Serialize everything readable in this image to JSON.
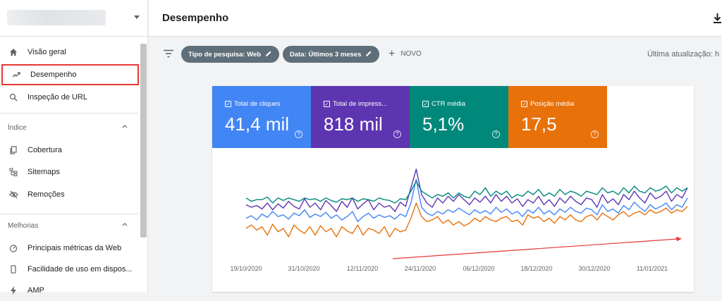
{
  "sidebar": {
    "items": [
      {
        "label": "Visão geral",
        "icon": "home-icon"
      },
      {
        "label": "Desempenho",
        "icon": "trending-up-icon"
      },
      {
        "label": "Inspeção de URL",
        "icon": "search-icon"
      }
    ],
    "sections": [
      {
        "title": "Índice",
        "items": [
          {
            "label": "Cobertura",
            "icon": "copy-icon"
          },
          {
            "label": "Sitemaps",
            "icon": "sitemap-icon"
          },
          {
            "label": "Remoções",
            "icon": "eye-off-icon"
          }
        ]
      },
      {
        "title": "Melhorias",
        "items": [
          {
            "label": "Principais métricas da Web",
            "icon": "gauge-icon"
          },
          {
            "label": "Facilidade de uso em dispos...",
            "icon": "phone-icon"
          },
          {
            "label": "AMP",
            "icon": "bolt-icon"
          }
        ]
      }
    ]
  },
  "header": {
    "title": "Desempenho"
  },
  "toolbar": {
    "chips": [
      "Tipo de pesquisa: Web",
      "Data: Últimos 3 meses"
    ],
    "novo": "NOVO",
    "updated": "Última atualização: h"
  },
  "metrics": [
    {
      "label": "Total de cliques",
      "value": "41,4 mil",
      "color": "#4285f4"
    },
    {
      "label": "Total de impress...",
      "value": "818 mil",
      "color": "#5e35b1"
    },
    {
      "label": "CTR média",
      "value": "5,1%",
      "color": "#00897b"
    },
    {
      "label": "Posição média",
      "value": "17,5",
      "color": "#e8710a"
    }
  ],
  "chart_data": {
    "type": "line",
    "x_labels": [
      "19/10/2020",
      "31/10/2020",
      "12/11/2020",
      "24/11/2020",
      "06/12/2020",
      "18/12/2020",
      "30/12/2020",
      "11/01/2021"
    ],
    "y_axis_shown": false,
    "series": [
      {
        "name": "Total de cliques",
        "color": "#4285f4",
        "values": [
          0.42,
          0.45,
          0.4,
          0.47,
          0.43,
          0.5,
          0.44,
          0.46,
          0.41,
          0.48,
          0.45,
          0.52,
          0.43,
          0.47,
          0.44,
          0.49,
          0.42,
          0.46,
          0.4,
          0.44,
          0.5,
          0.38,
          0.44,
          0.48,
          0.42,
          0.46,
          0.43,
          0.45,
          0.41,
          0.47,
          0.44,
          0.6,
          0.88,
          0.55,
          0.48,
          0.45,
          0.5,
          0.47,
          0.52,
          0.49,
          0.54,
          0.5,
          0.46,
          0.52,
          0.48,
          0.51,
          0.47,
          0.55,
          0.49,
          0.53,
          0.47,
          0.5,
          0.44,
          0.52,
          0.48,
          0.55,
          0.47,
          0.51,
          0.46,
          0.53,
          0.49,
          0.55,
          0.5,
          0.48,
          0.54,
          0.52,
          0.46,
          0.58,
          0.5,
          0.53,
          0.48,
          0.57,
          0.52,
          0.61,
          0.55,
          0.5,
          0.58,
          0.53,
          0.56,
          0.6,
          0.52,
          0.58,
          0.55,
          0.66
        ]
      },
      {
        "name": "Total de impressões",
        "color": "#5e35b1",
        "values": [
          0.58,
          0.55,
          0.57,
          0.53,
          0.6,
          0.52,
          0.59,
          0.54,
          0.62,
          0.56,
          0.53,
          0.65,
          0.55,
          0.6,
          0.52,
          0.63,
          0.57,
          0.5,
          0.62,
          0.55,
          0.66,
          0.53,
          0.59,
          0.64,
          0.52,
          0.6,
          0.55,
          0.57,
          0.5,
          0.61,
          0.56,
          0.78,
          1.0,
          0.7,
          0.6,
          0.55,
          0.66,
          0.6,
          0.68,
          0.62,
          0.7,
          0.64,
          0.58,
          0.66,
          0.61,
          0.68,
          0.6,
          0.7,
          0.62,
          0.68,
          0.6,
          0.65,
          0.56,
          0.64,
          0.6,
          0.68,
          0.58,
          0.64,
          0.56,
          0.66,
          0.6,
          0.68,
          0.62,
          0.58,
          0.66,
          0.64,
          0.55,
          0.7,
          0.6,
          0.65,
          0.58,
          0.7,
          0.64,
          0.74,
          0.66,
          0.6,
          0.72,
          0.65,
          0.68,
          0.74,
          0.62,
          0.7,
          0.66,
          0.78
        ]
      },
      {
        "name": "CTR média",
        "color": "#00897b",
        "values": [
          0.66,
          0.62,
          0.64,
          0.64,
          0.67,
          0.6,
          0.66,
          0.63,
          0.66,
          0.64,
          0.62,
          0.66,
          0.64,
          0.65,
          0.62,
          0.66,
          0.63,
          0.61,
          0.65,
          0.64,
          0.66,
          0.62,
          0.65,
          0.64,
          0.62,
          0.66,
          0.64,
          0.63,
          0.6,
          0.65,
          0.64,
          0.74,
          0.86,
          0.74,
          0.7,
          0.66,
          0.7,
          0.68,
          0.72,
          0.66,
          0.72,
          0.68,
          0.66,
          0.74,
          0.7,
          0.78,
          0.68,
          0.74,
          0.7,
          0.74,
          0.66,
          0.7,
          0.68,
          0.74,
          0.7,
          0.76,
          0.68,
          0.72,
          0.68,
          0.76,
          0.7,
          0.74,
          0.72,
          0.68,
          0.74,
          0.72,
          0.7,
          0.78,
          0.72,
          0.74,
          0.7,
          0.78,
          0.72,
          0.8,
          0.74,
          0.72,
          0.78,
          0.74,
          0.76,
          0.8,
          0.72,
          0.78,
          0.74,
          0.78
        ]
      },
      {
        "name": "Posição média",
        "color": "#e8710a",
        "values": [
          0.3,
          0.34,
          0.28,
          0.32,
          0.22,
          0.35,
          0.26,
          0.3,
          0.2,
          0.34,
          0.28,
          0.24,
          0.32,
          0.22,
          0.33,
          0.26,
          0.3,
          0.2,
          0.32,
          0.27,
          0.24,
          0.34,
          0.22,
          0.3,
          0.28,
          0.24,
          0.32,
          0.2,
          0.3,
          0.26,
          0.28,
          0.42,
          0.6,
          0.44,
          0.38,
          0.4,
          0.44,
          0.36,
          0.4,
          0.34,
          0.38,
          0.33,
          0.36,
          0.42,
          0.38,
          0.44,
          0.4,
          0.38,
          0.42,
          0.44,
          0.38,
          0.4,
          0.34,
          0.46,
          0.42,
          0.44,
          0.38,
          0.42,
          0.36,
          0.44,
          0.4,
          0.46,
          0.4,
          0.38,
          0.44,
          0.46,
          0.4,
          0.48,
          0.44,
          0.4,
          0.46,
          0.5,
          0.44,
          0.48,
          0.5,
          0.46,
          0.52,
          0.48,
          0.5,
          0.54,
          0.48,
          0.52,
          0.5,
          0.56
        ]
      }
    ],
    "annotation": {
      "type": "trend-arrow",
      "color": "#e53935"
    }
  }
}
